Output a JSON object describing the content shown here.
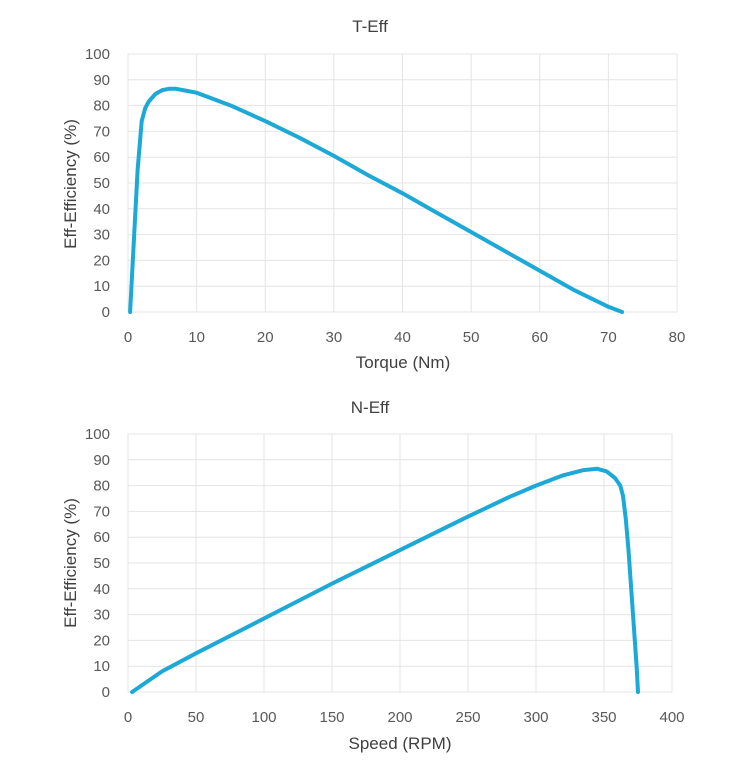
{
  "chart_data": [
    {
      "type": "line",
      "title": "T-Eff",
      "xlabel": "Torque (Nm)",
      "ylabel": "Eff-Efficiency (%)",
      "xlim": [
        0,
        80
      ],
      "ylim": [
        0,
        100
      ],
      "xticks": [
        0,
        10,
        20,
        30,
        40,
        50,
        60,
        70,
        80
      ],
      "yticks": [
        0,
        10,
        20,
        30,
        40,
        50,
        60,
        70,
        80,
        90,
        100
      ],
      "grid": true,
      "series": [
        {
          "name": "T-Eff",
          "color": "#1ca9d8",
          "x": [
            0.3,
            0.8,
            1.4,
            2.0,
            2.5,
            3.0,
            4.0,
            5.0,
            6.0,
            7.0,
            8.0,
            10.0,
            12.0,
            15.0,
            20.0,
            25.0,
            30.0,
            35.0,
            40.0,
            45.0,
            50.0,
            55.0,
            60.0,
            65.0,
            70.0,
            72.0
          ],
          "y": [
            0,
            25,
            55,
            74,
            79,
            81.5,
            84.5,
            86,
            86.5,
            86.5,
            86,
            85,
            83,
            80,
            74,
            67.5,
            60.5,
            53,
            46,
            38.5,
            31,
            23.5,
            16,
            8.5,
            2,
            0
          ]
        }
      ]
    },
    {
      "type": "line",
      "title": "N-Eff",
      "xlabel": "Speed (RPM)",
      "ylabel": "Eff-Efficiency (%)",
      "xlim": [
        0,
        400
      ],
      "ylim": [
        0,
        100
      ],
      "xticks": [
        0,
        50,
        100,
        150,
        200,
        250,
        300,
        350,
        400
      ],
      "yticks": [
        0,
        10,
        20,
        30,
        40,
        50,
        60,
        70,
        80,
        90,
        100
      ],
      "grid": true,
      "series": [
        {
          "name": "N-Eff",
          "color": "#1ca9d8",
          "x": [
            3,
            25,
            50,
            100,
            150,
            200,
            250,
            280,
            300,
            320,
            335,
            345,
            352,
            358,
            362,
            364,
            366,
            368,
            370,
            372,
            374,
            375
          ],
          "y": [
            0,
            8,
            15,
            28.5,
            42,
            55,
            68,
            75.5,
            80,
            84,
            86,
            86.5,
            85.5,
            83,
            80,
            76,
            67,
            55,
            40,
            25,
            10,
            0
          ]
        }
      ]
    }
  ]
}
